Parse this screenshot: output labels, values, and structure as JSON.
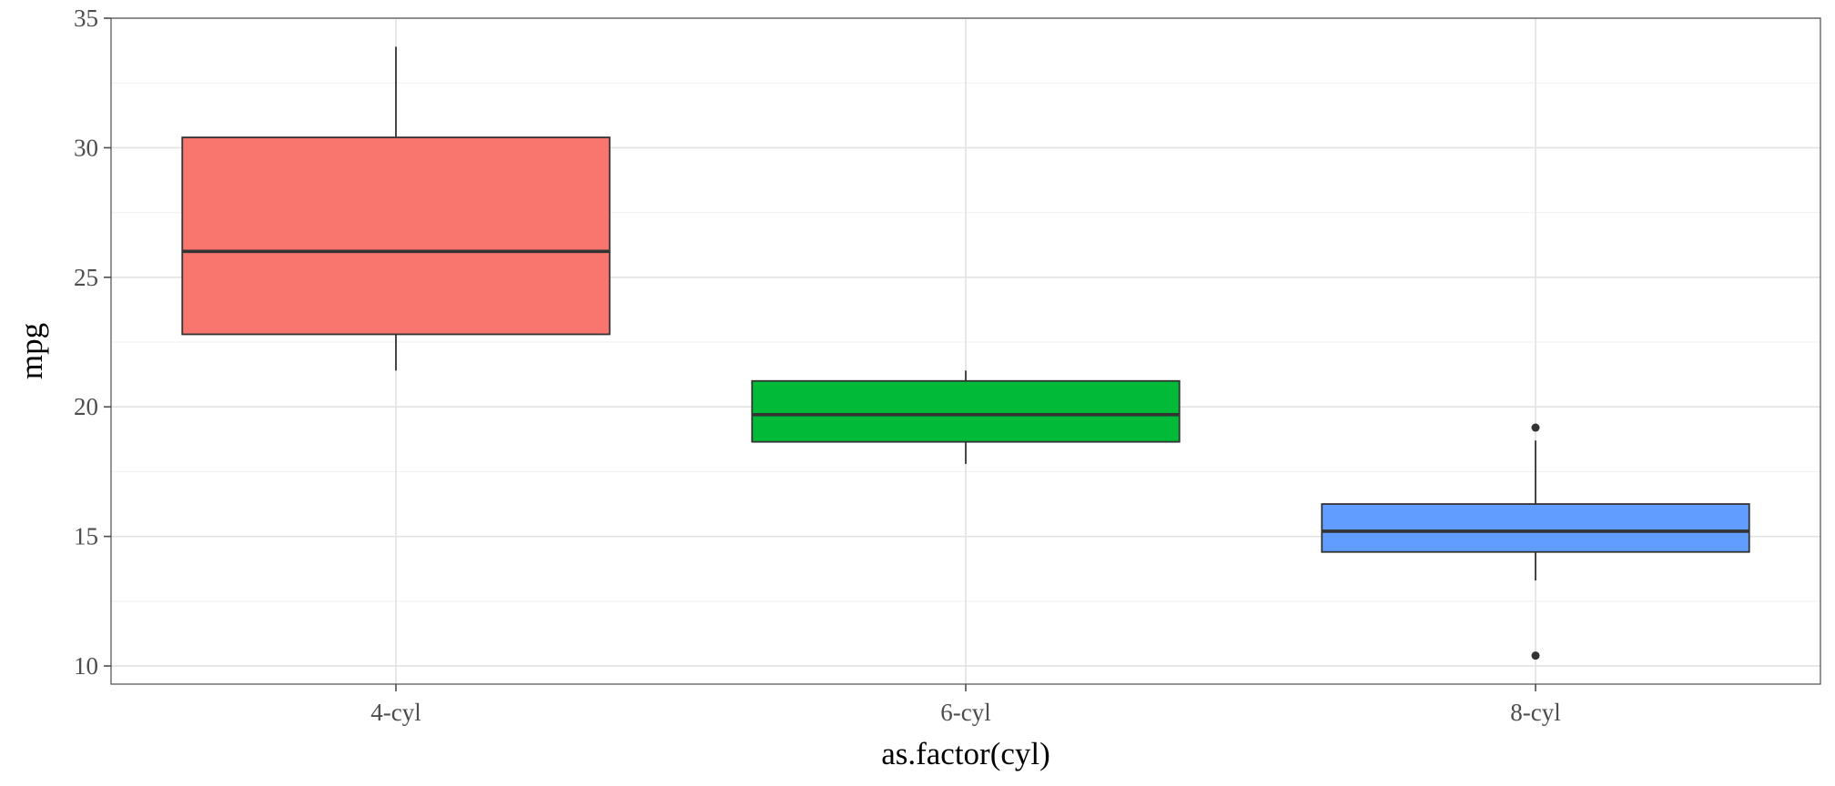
{
  "chart_data": {
    "type": "boxplot",
    "title": "",
    "xlabel": "as.factor(cyl)",
    "ylabel": "mpg",
    "ylim": [
      9.3,
      35
    ],
    "yticks": [
      10,
      15,
      20,
      25,
      30,
      35
    ],
    "grid": true,
    "legend": "none",
    "categories": [
      "4-cyl",
      "6-cyl",
      "8-cyl"
    ],
    "boxes": [
      {
        "category": "4-cyl",
        "min": 21.4,
        "q1": 22.8,
        "median": 26.0,
        "q3": 30.4,
        "max": 33.9,
        "outliers": [],
        "color": "#F8766D"
      },
      {
        "category": "6-cyl",
        "min": 17.8,
        "q1": 18.65,
        "median": 19.7,
        "q3": 21.0,
        "max": 21.4,
        "outliers": [],
        "color": "#00BA38"
      },
      {
        "category": "8-cyl",
        "min": 13.3,
        "q1": 14.4,
        "median": 15.2,
        "q3": 16.25,
        "max": 18.7,
        "outliers": [
          10.4,
          19.2
        ],
        "color": "#619CFF"
      }
    ]
  }
}
